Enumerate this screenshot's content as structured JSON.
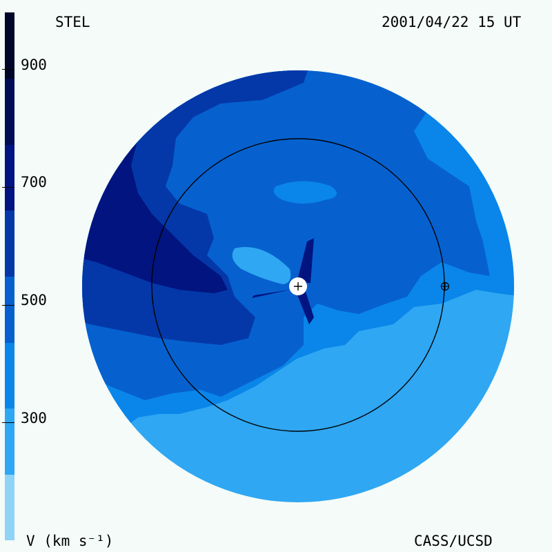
{
  "instrument": "STEL",
  "datetime": "2001/04/22 15 UT",
  "credit": "CASS/UCSD",
  "colorbar": {
    "label": "V (km s⁻¹)",
    "ticks": [
      "900",
      "700",
      "500",
      "300"
    ],
    "levels": [
      {
        "min": 200,
        "max": 300,
        "color": "#8fd3f7"
      },
      {
        "min": 300,
        "max": 400,
        "color": "#2fa7f2"
      },
      {
        "min": 400,
        "max": 500,
        "color": "#0a86ea"
      },
      {
        "min": 500,
        "max": 600,
        "color": "#0661cf"
      },
      {
        "min": 600,
        "max": 700,
        "color": "#0438a8"
      },
      {
        "min": 700,
        "max": 800,
        "color": "#01147f"
      },
      {
        "min": 800,
        "max": 900,
        "color": "#010c55"
      },
      {
        "min": 900,
        "max": 1000,
        "color": "#000628"
      }
    ]
  },
  "colors": {
    "background": "#f4fbf8",
    "orbit": "#000000",
    "sun": "#ffffff"
  }
}
